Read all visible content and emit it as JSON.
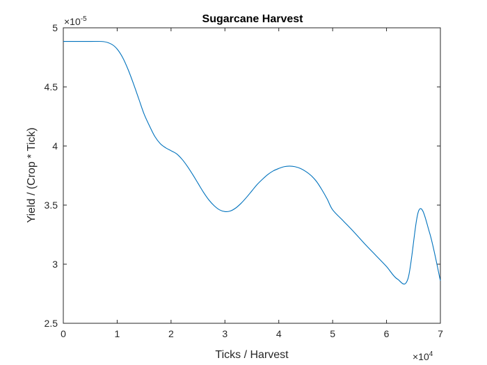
{
  "chart_data": {
    "type": "line",
    "title": "Sugarcane Harvest",
    "xlabel": "Ticks / Harvest",
    "ylabel": "Yield / (Crop * Tick)",
    "x_multiplier_label": "×10",
    "x_multiplier_exp": "4",
    "y_multiplier_label": "×10",
    "y_multiplier_exp": "-5",
    "xlim": [
      0,
      7
    ],
    "ylim": [
      2.5,
      5
    ],
    "x_ticks": [
      "0",
      "1",
      "2",
      "3",
      "4",
      "5",
      "6",
      "7"
    ],
    "y_ticks": [
      "2.5",
      "3",
      "3.5",
      "4",
      "4.5",
      "5"
    ],
    "grid": false,
    "line_color": "#0072bd",
    "series": [
      {
        "x": [
          0,
          0.5,
          0.75,
          0.9,
          1.0,
          1.1,
          1.2,
          1.3,
          1.4,
          1.5,
          1.6,
          1.7,
          1.8,
          1.9,
          2.0,
          2.1,
          2.2,
          2.3,
          2.4,
          2.5,
          2.6,
          2.7,
          2.8,
          2.9,
          3.0,
          3.1,
          3.2,
          3.3,
          3.4,
          3.5,
          3.6,
          3.7,
          3.8,
          3.9,
          4.0,
          4.1,
          4.2,
          4.3,
          4.4,
          4.5,
          4.6,
          4.7,
          4.8,
          4.9,
          5.0,
          5.2,
          5.4,
          5.6,
          5.8,
          6.0,
          6.2,
          6.4,
          6.6,
          6.8,
          7.0
        ],
        "y": [
          4.885,
          4.885,
          4.883,
          4.86,
          4.82,
          4.75,
          4.65,
          4.53,
          4.4,
          4.27,
          4.17,
          4.08,
          4.02,
          3.985,
          3.96,
          3.935,
          3.89,
          3.83,
          3.76,
          3.685,
          3.61,
          3.545,
          3.495,
          3.46,
          3.445,
          3.45,
          3.475,
          3.515,
          3.565,
          3.62,
          3.675,
          3.72,
          3.76,
          3.79,
          3.81,
          3.825,
          3.83,
          3.825,
          3.81,
          3.785,
          3.75,
          3.7,
          3.63,
          3.55,
          3.46,
          3.365,
          3.27,
          3.17,
          3.075,
          2.98,
          2.875,
          2.88,
          3.455,
          3.265,
          2.86
        ]
      }
    ]
  }
}
